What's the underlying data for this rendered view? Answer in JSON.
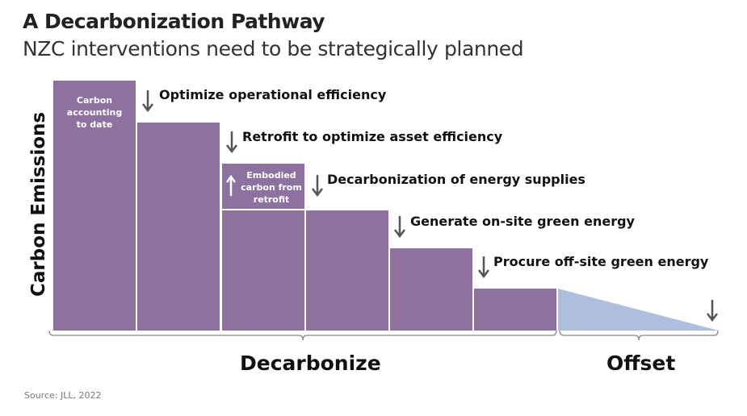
{
  "title": "A Decarbonization Pathway",
  "subtitle": "NZC interventions need to be strategically planned",
  "y_axis_label": "Carbon Emissions",
  "inbar_labels": {
    "carbon_accounting": "Carbon accounting to date",
    "embodied": "Embodied carbon from retrofit"
  },
  "steps": [
    {
      "label": "Optimize operational efficiency",
      "direction": "down"
    },
    {
      "label": "Retrofit to optimize asset efficiency",
      "direction": "down"
    },
    {
      "label": "Decarbonization of energy supplies",
      "direction": "down"
    },
    {
      "label": "Generate on-site green energy",
      "direction": "down"
    },
    {
      "label": "Procure off-site green energy",
      "direction": "down"
    }
  ],
  "phases": {
    "decarbonize": "Decarbonize",
    "offset": "Offset"
  },
  "source": "Source: JLL, 2022",
  "colors": {
    "bars": "#8d72a0",
    "offset": "#adbfdc",
    "arrow": "#555555"
  }
}
